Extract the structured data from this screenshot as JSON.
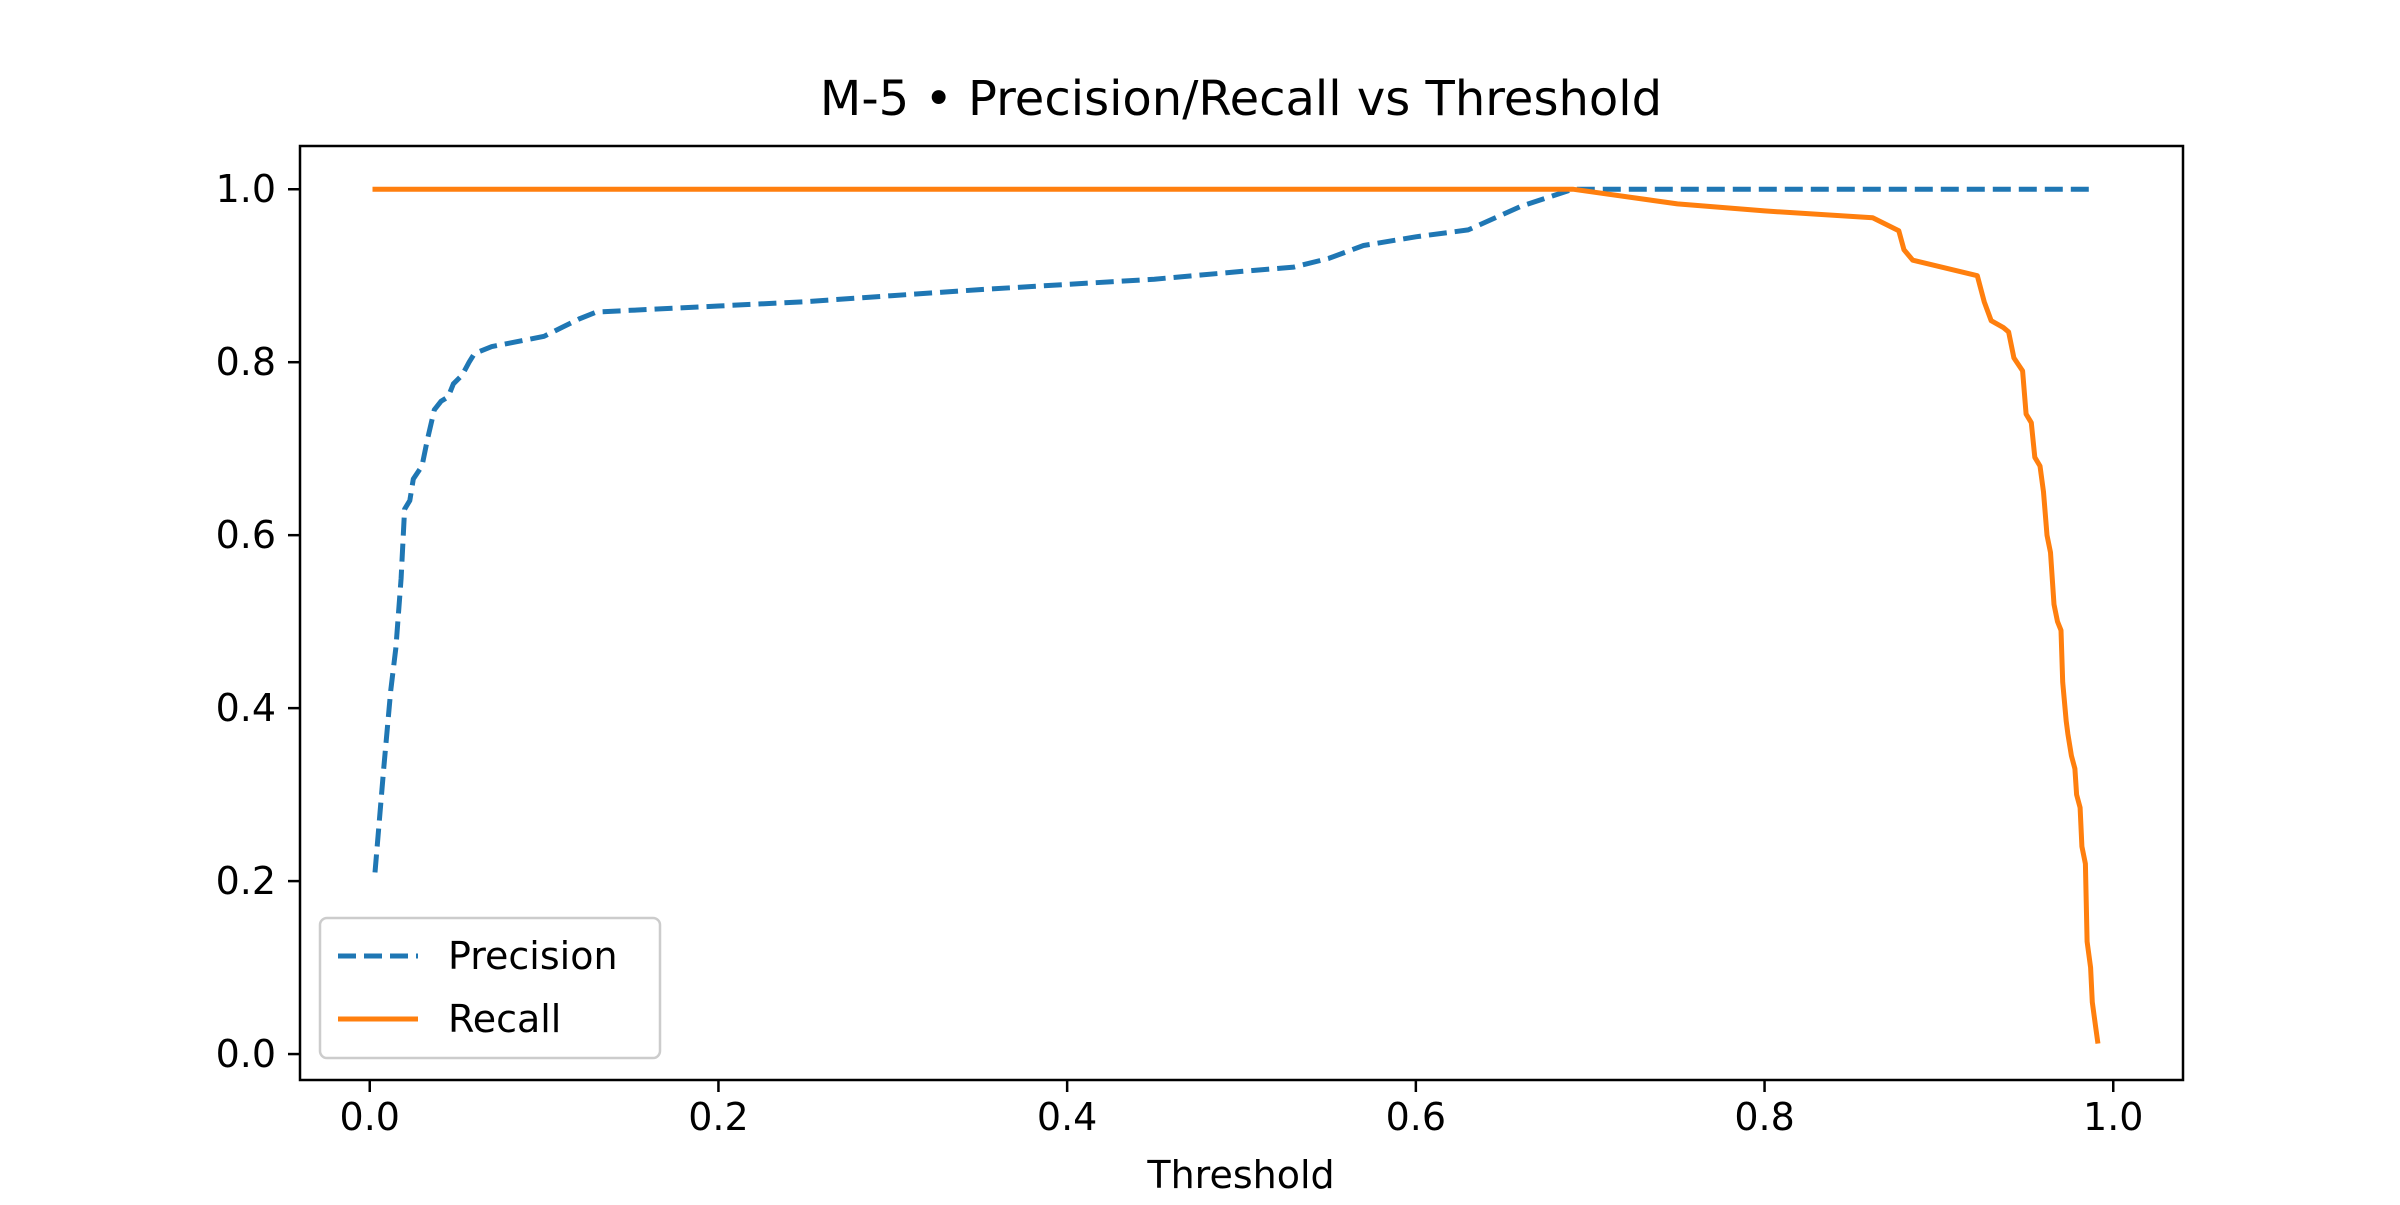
{
  "chart_data": {
    "type": "line",
    "title": "M-5 • Precision/Recall vs Threshold",
    "xlabel": "Threshold",
    "ylabel": "",
    "xlim": [
      -0.04,
      1.04
    ],
    "ylim": [
      -0.03,
      1.05
    ],
    "xticks": [
      0.0,
      0.2,
      0.4,
      0.6,
      0.8,
      1.0
    ],
    "xtick_labels": [
      "0.0",
      "0.2",
      "0.4",
      "0.6",
      "0.8",
      "1.0"
    ],
    "yticks": [
      0.0,
      0.2,
      0.4,
      0.6,
      0.8,
      1.0
    ],
    "ytick_labels": [
      "0.0",
      "0.2",
      "0.4",
      "0.6",
      "0.8",
      "1.0"
    ],
    "grid": false,
    "legend_position": "lower-left",
    "series": [
      {
        "name": "Precision",
        "color": "#1f77b4",
        "style": "dashed",
        "points": [
          [
            0.003,
            0.21
          ],
          [
            0.008,
            0.33
          ],
          [
            0.012,
            0.42
          ],
          [
            0.015,
            0.47
          ],
          [
            0.018,
            0.55
          ],
          [
            0.02,
            0.63
          ],
          [
            0.023,
            0.64
          ],
          [
            0.025,
            0.665
          ],
          [
            0.03,
            0.68
          ],
          [
            0.033,
            0.71
          ],
          [
            0.037,
            0.745
          ],
          [
            0.041,
            0.755
          ],
          [
            0.045,
            0.76
          ],
          [
            0.048,
            0.775
          ],
          [
            0.053,
            0.785
          ],
          [
            0.057,
            0.8
          ],
          [
            0.06,
            0.81
          ],
          [
            0.07,
            0.818
          ],
          [
            0.08,
            0.822
          ],
          [
            0.1,
            0.83
          ],
          [
            0.11,
            0.84
          ],
          [
            0.12,
            0.85
          ],
          [
            0.13,
            0.858
          ],
          [
            0.15,
            0.86
          ],
          [
            0.2,
            0.865
          ],
          [
            0.25,
            0.87
          ],
          [
            0.3,
            0.877
          ],
          [
            0.35,
            0.884
          ],
          [
            0.4,
            0.89
          ],
          [
            0.45,
            0.896
          ],
          [
            0.5,
            0.905
          ],
          [
            0.53,
            0.91
          ],
          [
            0.55,
            0.92
          ],
          [
            0.57,
            0.935
          ],
          [
            0.6,
            0.945
          ],
          [
            0.63,
            0.953
          ],
          [
            0.66,
            0.98
          ],
          [
            0.69,
            1.0
          ],
          [
            0.75,
            1.0
          ],
          [
            0.8,
            1.0
          ],
          [
            0.85,
            1.0
          ],
          [
            0.9,
            1.0
          ],
          [
            0.95,
            1.0
          ],
          [
            0.987,
            1.0
          ]
        ]
      },
      {
        "name": "Recall",
        "color": "#ff7f0e",
        "style": "solid",
        "points": [
          [
            0.003,
            1.0
          ],
          [
            0.1,
            1.0
          ],
          [
            0.2,
            1.0
          ],
          [
            0.3,
            1.0
          ],
          [
            0.4,
            1.0
          ],
          [
            0.5,
            1.0
          ],
          [
            0.6,
            1.0
          ],
          [
            0.69,
            1.0
          ],
          [
            0.75,
            0.983
          ],
          [
            0.8,
            0.975
          ],
          [
            0.862,
            0.967
          ],
          [
            0.877,
            0.952
          ],
          [
            0.88,
            0.93
          ],
          [
            0.885,
            0.918
          ],
          [
            0.922,
            0.9
          ],
          [
            0.926,
            0.87
          ],
          [
            0.93,
            0.848
          ],
          [
            0.937,
            0.84
          ],
          [
            0.94,
            0.835
          ],
          [
            0.943,
            0.805
          ],
          [
            0.948,
            0.79
          ],
          [
            0.95,
            0.74
          ],
          [
            0.953,
            0.73
          ],
          [
            0.955,
            0.69
          ],
          [
            0.958,
            0.68
          ],
          [
            0.96,
            0.65
          ],
          [
            0.962,
            0.6
          ],
          [
            0.964,
            0.58
          ],
          [
            0.966,
            0.52
          ],
          [
            0.968,
            0.5
          ],
          [
            0.97,
            0.49
          ],
          [
            0.971,
            0.43
          ],
          [
            0.973,
            0.385
          ],
          [
            0.974,
            0.37
          ],
          [
            0.976,
            0.345
          ],
          [
            0.978,
            0.33
          ],
          [
            0.979,
            0.3
          ],
          [
            0.981,
            0.285
          ],
          [
            0.982,
            0.24
          ],
          [
            0.984,
            0.22
          ],
          [
            0.985,
            0.13
          ],
          [
            0.987,
            0.1
          ],
          [
            0.988,
            0.06
          ],
          [
            0.99,
            0.03
          ],
          [
            0.991,
            0.015
          ]
        ]
      }
    ]
  }
}
